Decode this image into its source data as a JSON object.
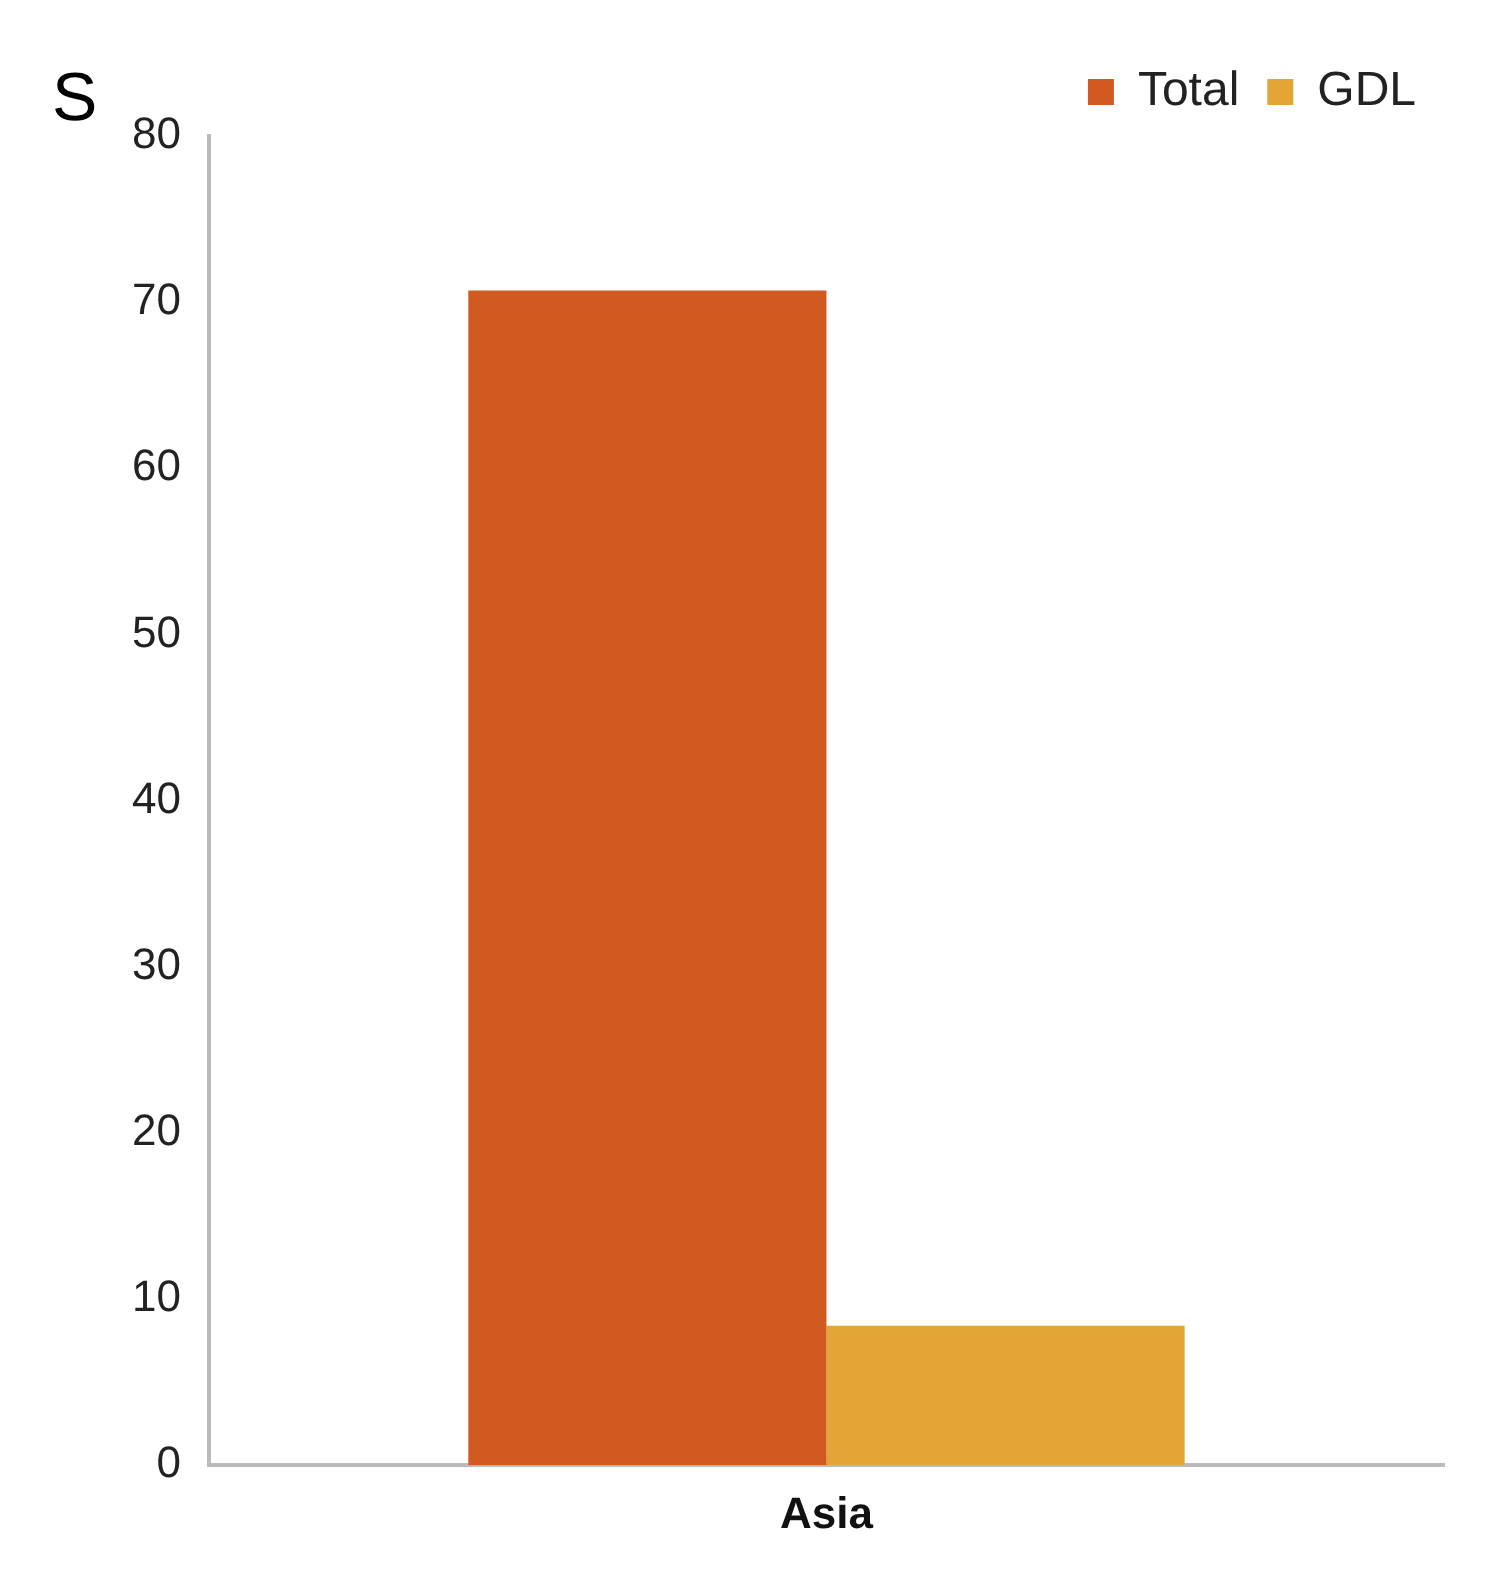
{
  "chart_data": {
    "type": "bar",
    "categories": [
      "Asia"
    ],
    "series": [
      {
        "name": "Total",
        "color": "#d05a20",
        "values": [
          70.7
        ]
      },
      {
        "name": "GDL",
        "color": "#e3a535",
        "values": [
          8.4
        ]
      }
    ],
    "ylim": [
      0,
      80
    ],
    "yticks": [
      0,
      10,
      20,
      30,
      40,
      50,
      60,
      70,
      80
    ],
    "grid": false,
    "legend": "top right",
    "annotations": [
      "S"
    ]
  }
}
